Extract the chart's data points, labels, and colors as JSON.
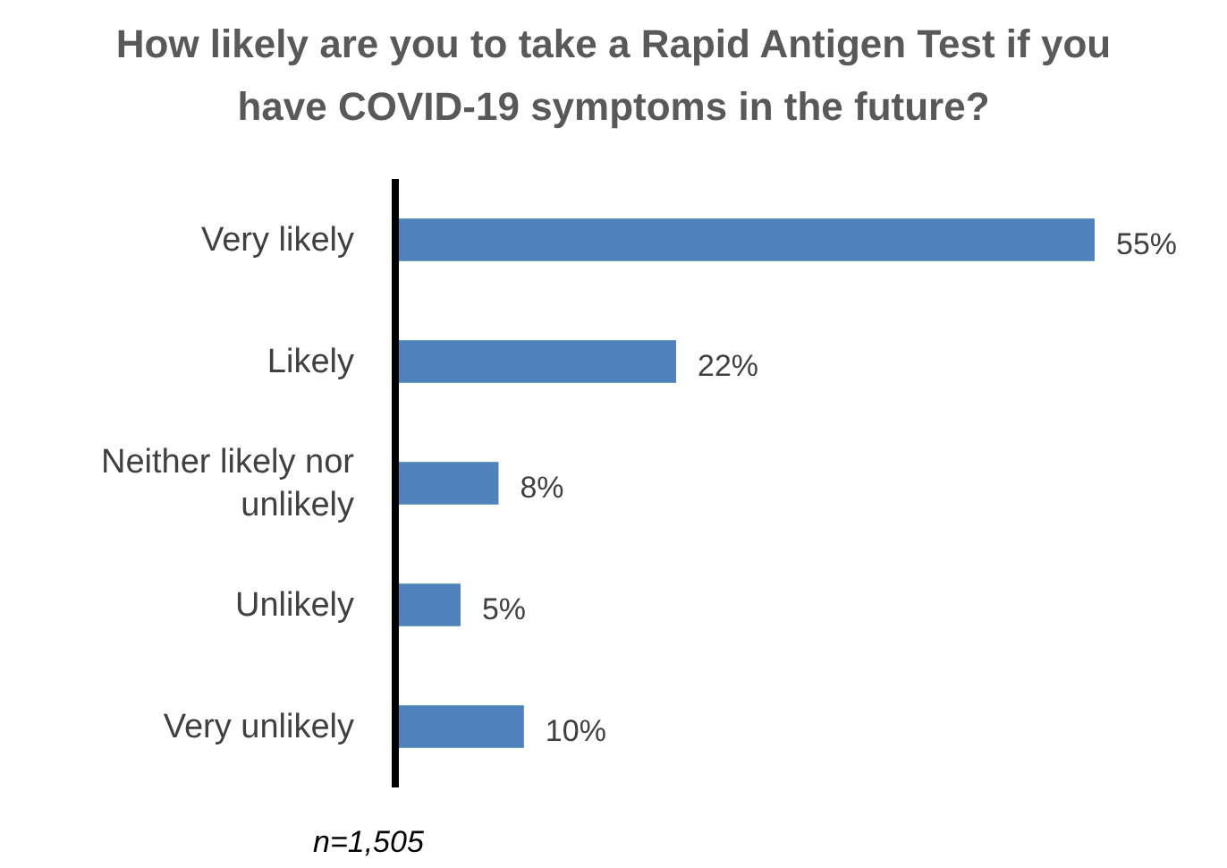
{
  "chart_data": {
    "type": "bar",
    "orientation": "horizontal",
    "title": "How likely are you to take a Rapid Antigen Test if you have COVID-19 symptoms in the future?",
    "categories": [
      "Very likely",
      "Likely",
      "Neither likely nor unlikely",
      "Unlikely",
      "Very unlikely"
    ],
    "values": [
      55,
      22,
      8,
      5,
      10
    ],
    "value_labels": [
      "55%",
      "22%",
      "8%",
      "5%",
      "10%"
    ],
    "color": "#4f81bd",
    "annotations": [
      "n=1,505"
    ]
  }
}
